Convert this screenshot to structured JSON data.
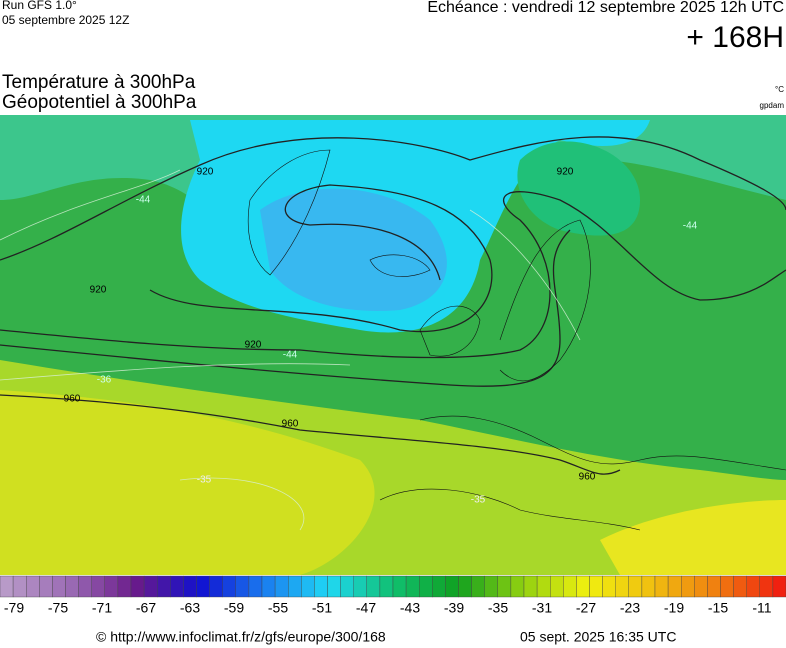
{
  "header": {
    "run": "Run GFS 1.0°",
    "run_date": "05 septembre 2025 12Z",
    "valid": "Echéance : vendredi 12 septembre 2025 12h UTC",
    "lead": "+ 168H",
    "field1": "Température à 300hPa",
    "field2": "Géopotentiel à 300hPa",
    "unit1": "°C",
    "unit2": "gpdam"
  },
  "map": {
    "contour_labels": [
      "920",
      "920",
      "920",
      "920",
      "960",
      "960",
      "960",
      "-44",
      "-44",
      "-44",
      "-36",
      "-35",
      "-35"
    ]
  },
  "colorbar": {
    "labels": [
      -79,
      -75,
      -71,
      -67,
      -63,
      -59,
      -55,
      -51,
      -47,
      -43,
      -39,
      -35,
      -31,
      -27,
      -23,
      -19,
      -15,
      -11
    ],
    "stops": [
      "#b89ac8",
      "#9a6ab4",
      "#6a1a8a",
      "#1010d0",
      "#1a7cf0",
      "#20d8f4",
      "#10c070",
      "#10a020",
      "#90d010",
      "#f0f010",
      "#f0c010",
      "#f08010",
      "#f02010"
    ]
  },
  "footer": {
    "url": "© http://www.infoclimat.fr/z/gfs/europe/300/168",
    "created": "05 sept. 2025 16:35 UTC"
  }
}
